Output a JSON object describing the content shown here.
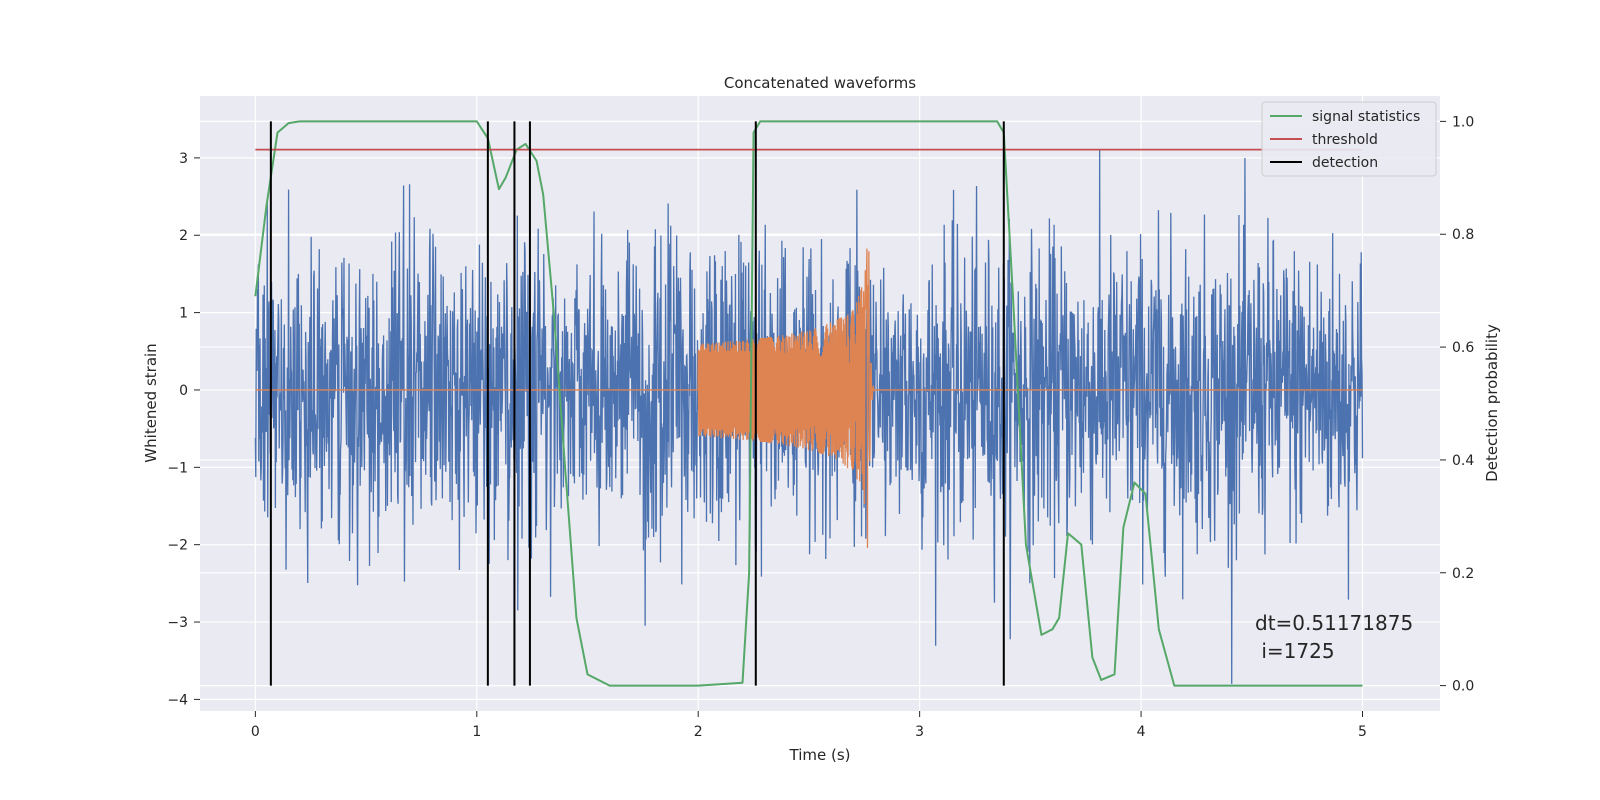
{
  "chart_data": {
    "type": "line",
    "title": "Concatenated waveforms",
    "xlabel": "Time (s)",
    "ylabel": "Whitened strain",
    "y2label": "Detection probability",
    "xlim": [
      -0.25,
      5.35
    ],
    "ylim": [
      -4.15,
      3.8
    ],
    "y2lim": [
      -0.045,
      1.045
    ],
    "xticks": [
      0,
      1,
      2,
      3,
      4,
      5
    ],
    "yticks": [
      -4,
      -3,
      -2,
      -1,
      0,
      1,
      2,
      3
    ],
    "y2ticks": [
      0.0,
      0.2,
      0.4,
      0.6,
      0.8,
      1.0
    ],
    "grid": true,
    "legend_position": "top-right",
    "background": "#eaeaf2",
    "colors": {
      "strain": "#4c72b0",
      "template": "#dd8452",
      "signal_statistics": "#55a868",
      "threshold": "#c44e52",
      "detection": "#000000"
    },
    "strain_series": {
      "x_range": [
        0,
        5
      ],
      "approx_std": 0.95,
      "approx_range": [
        -3.8,
        3.4
      ]
    },
    "template_series": {
      "x_start": 2.0,
      "x_merger": 2.77,
      "start_amplitude": 0.6,
      "peak_amplitude": 2.2
    },
    "signal_statistics": {
      "x": [
        0.0,
        0.05,
        0.1,
        0.15,
        0.2,
        0.5,
        1.0,
        1.05,
        1.1,
        1.13,
        1.18,
        1.22,
        1.27,
        1.3,
        1.35,
        1.4,
        1.45,
        1.5,
        1.6,
        2.0,
        2.2,
        2.23,
        2.25,
        2.28,
        2.3,
        2.5,
        3.0,
        3.35,
        3.38,
        3.42,
        3.48,
        3.55,
        3.6,
        3.63,
        3.67,
        3.73,
        3.78,
        3.82,
        3.88,
        3.92,
        3.97,
        4.02,
        4.08,
        4.15,
        4.5,
        5.0
      ],
      "y": [
        0.69,
        0.85,
        0.98,
        0.997,
        1.0,
        1.0,
        1.0,
        0.97,
        0.88,
        0.9,
        0.95,
        0.96,
        0.93,
        0.87,
        0.65,
        0.38,
        0.12,
        0.02,
        0.0,
        0.0,
        0.005,
        0.2,
        0.98,
        1.0,
        1.0,
        1.0,
        1.0,
        1.0,
        0.98,
        0.7,
        0.25,
        0.09,
        0.1,
        0.12,
        0.27,
        0.25,
        0.05,
        0.01,
        0.02,
        0.28,
        0.36,
        0.34,
        0.1,
        0.0,
        0.0,
        0.0
      ]
    },
    "threshold": 0.95,
    "detections": [
      0.07,
      1.05,
      1.17,
      1.24,
      2.26,
      3.38
    ],
    "legend": [
      "signal statistics",
      "threshold",
      "detection"
    ],
    "annotation": [
      "dt=0.51171875",
      " i=1725"
    ]
  }
}
